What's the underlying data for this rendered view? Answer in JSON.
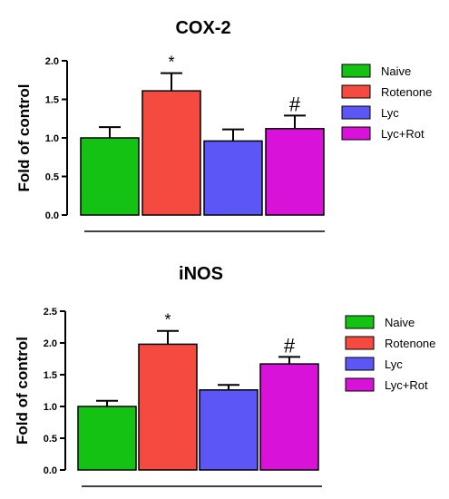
{
  "chart_data": [
    {
      "type": "bar",
      "title": "COX-2",
      "xlabel": "",
      "ylabel": "Fold of control",
      "ylim": [
        0,
        2.0
      ],
      "yticks": [
        "0.0",
        "0.5",
        "1.0",
        "1.5",
        "2.0"
      ],
      "categories": [
        "Naive",
        "Rotenone",
        "Lyc",
        "Lyc+Rot"
      ],
      "values": [
        1.0,
        1.61,
        0.96,
        1.12
      ],
      "errors": [
        0.14,
        0.23,
        0.15,
        0.17
      ],
      "annotations": [
        "",
        "*",
        "",
        "#"
      ],
      "colors": [
        "#14c214",
        "#f44a3f",
        "#5b56f5",
        "#d812d8"
      ],
      "legend": "right",
      "grid": false
    },
    {
      "type": "bar",
      "title": "iNOS",
      "xlabel": "",
      "ylabel": "Fold of control",
      "ylim": [
        0,
        2.5
      ],
      "yticks": [
        "0.0",
        "0.5",
        "1.0",
        "1.5",
        "2.0",
        "2.5"
      ],
      "categories": [
        "Naive",
        "Rotenone",
        "Lyc",
        "Lyc+Rot"
      ],
      "values": [
        1.0,
        1.98,
        1.26,
        1.67
      ],
      "errors": [
        0.09,
        0.21,
        0.08,
        0.11
      ],
      "annotations": [
        "",
        "*",
        "",
        "#"
      ],
      "colors": [
        "#14c214",
        "#f44a3f",
        "#5b56f5",
        "#d812d8"
      ],
      "legend": "right",
      "grid": false
    }
  ]
}
